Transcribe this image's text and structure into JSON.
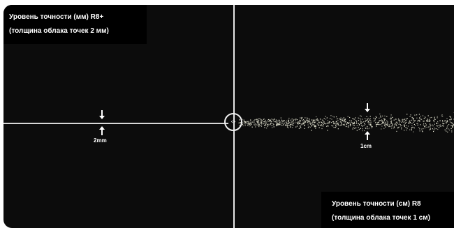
{
  "left_label": {
    "line1": "Уровень точности (мм) R8+",
    "line2": "(толщина облака точек 2 мм)"
  },
  "right_label": {
    "line1": "Уровень точности (см) R8",
    "line2": "(толщина облака точек 1 см)"
  },
  "left_measure": "2mm",
  "right_measure": "1cm",
  "center_marker_icon": "split-arrows-icon",
  "colors": {
    "background": "#0c0c0c",
    "label_background": "#000000",
    "text": "#ffffff",
    "line": "#d8d8d8"
  }
}
